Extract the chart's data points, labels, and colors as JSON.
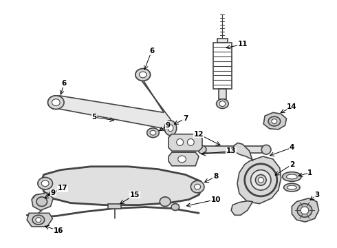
{
  "bg_color": "#ffffff",
  "lc": "#444444",
  "lc2": "#666666",
  "figsize": [
    4.9,
    3.6
  ],
  "dpi": 100
}
